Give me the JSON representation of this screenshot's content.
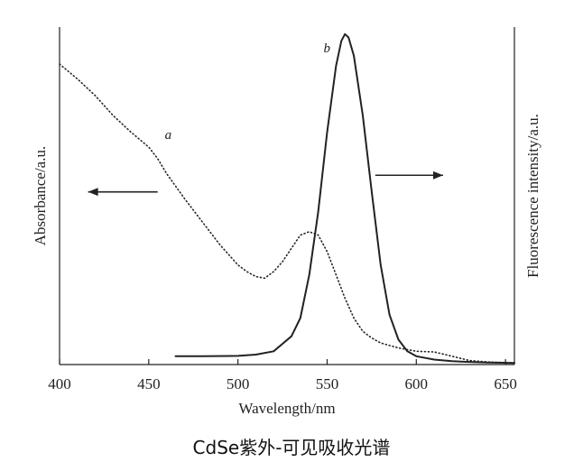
{
  "caption": "CdSe紫外-可见吸收光谱",
  "chart_data": {
    "type": "line",
    "xlabel": "Wavelength/nm",
    "ylabel_left": "Absorbance/a.u.",
    "ylabel_right": "Fluorescence intensity/a.u.",
    "xlim": [
      400,
      655
    ],
    "ylim": [
      0,
      1
    ],
    "x_ticks": [
      "400",
      "450",
      "500",
      "550",
      "600",
      "650"
    ],
    "grid": false,
    "series": [
      {
        "name": "a",
        "style": "dotted",
        "axis": "left",
        "x": [
          400,
          410,
          420,
          430,
          440,
          450,
          455,
          460,
          470,
          480,
          490,
          500,
          505,
          510,
          515,
          520,
          525,
          530,
          535,
          540,
          545,
          550,
          555,
          560,
          565,
          570,
          575,
          580,
          590,
          600,
          610,
          620,
          630,
          640,
          650,
          655
        ],
        "y": [
          0.905,
          0.86,
          0.81,
          0.75,
          0.7,
          0.655,
          0.62,
          0.575,
          0.5,
          0.43,
          0.36,
          0.3,
          0.28,
          0.265,
          0.26,
          0.28,
          0.31,
          0.35,
          0.39,
          0.4,
          0.39,
          0.34,
          0.27,
          0.2,
          0.14,
          0.1,
          0.08,
          0.065,
          0.05,
          0.04,
          0.038,
          0.025,
          0.012,
          0.008,
          0.006,
          0.005
        ]
      },
      {
        "name": "b",
        "style": "solid",
        "axis": "right",
        "x": [
          465,
          480,
          500,
          510,
          520,
          530,
          535,
          540,
          545,
          550,
          555,
          558,
          560,
          562,
          565,
          570,
          575,
          580,
          585,
          590,
          595,
          600,
          610,
          620,
          630,
          640,
          655
        ],
        "y": [
          0.025,
          0.025,
          0.026,
          0.03,
          0.04,
          0.085,
          0.14,
          0.27,
          0.46,
          0.7,
          0.9,
          0.975,
          0.995,
          0.985,
          0.93,
          0.75,
          0.52,
          0.3,
          0.15,
          0.075,
          0.04,
          0.025,
          0.015,
          0.01,
          0.008,
          0.006,
          0.005
        ]
      }
    ],
    "annotations": [
      {
        "text": "a",
        "x": 459,
        "y": 0.68
      },
      {
        "text": "b",
        "x": 548,
        "y": 0.94
      },
      {
        "arrow": "left",
        "from": [
          455,
          0.52
        ],
        "to": [
          416,
          0.52
        ]
      },
      {
        "arrow": "right",
        "from": [
          577,
          0.57
        ],
        "to": [
          615,
          0.57
        ]
      }
    ]
  }
}
